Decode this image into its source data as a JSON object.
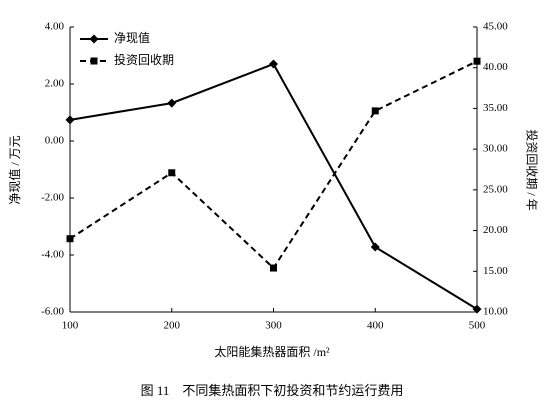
{
  "chart_data": {
    "type": "line",
    "caption": "图 11　不同集热面积下初投资和节约运行费用",
    "xlabel": "太阳能集热器面积 /m²",
    "ylabel": "净现值 / 万元",
    "y2label": "投资回收期 / 年",
    "x": [
      100,
      200,
      300,
      400,
      500
    ],
    "xlim": [
      100,
      500
    ],
    "xticks": [
      100,
      200,
      300,
      400,
      500
    ],
    "ylim": [
      -6,
      4
    ],
    "yticks": [
      {
        "value": -6,
        "label": "-6.00"
      },
      {
        "value": -4,
        "label": "-4.00"
      },
      {
        "value": -2,
        "label": "-2.00"
      },
      {
        "value": 0,
        "label": "0.00"
      },
      {
        "value": 2,
        "label": "2.00"
      },
      {
        "value": 4,
        "label": "4.00"
      }
    ],
    "y2lim": [
      10,
      45
    ],
    "y2ticks": [
      {
        "value": 10,
        "label": "10.00"
      },
      {
        "value": 15,
        "label": "15.00"
      },
      {
        "value": 20,
        "label": "20.00"
      },
      {
        "value": 25,
        "label": "25.00"
      },
      {
        "value": 30,
        "label": "30.00"
      },
      {
        "value": 35,
        "label": "35.00"
      },
      {
        "value": 40,
        "label": "40.00"
      },
      {
        "value": 45,
        "label": "45.00"
      }
    ],
    "legend": "upper left",
    "series": [
      {
        "name": "净现值",
        "color": "#000000",
        "marker": "diamond",
        "dashed": false,
        "values": [
          0.74,
          1.33,
          2.7,
          -3.72,
          -5.9
        ]
      },
      {
        "name": "投资回收期",
        "color": "#000000",
        "marker": "square",
        "dashed": true,
        "axis": "y2",
        "values": [
          19.0,
          27.1,
          15.4,
          34.7,
          40.8
        ]
      }
    ]
  }
}
